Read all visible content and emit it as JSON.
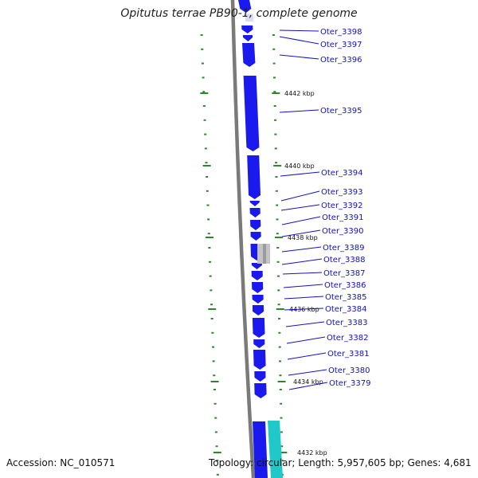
{
  "title": "Opitutus terrae PB90-1, complete genome",
  "accession_label": "Accession:",
  "accession": "NC_010571",
  "topology_text": "Topology: circular; Length: 5,957,605 bp; Genes: 4,681",
  "colors": {
    "gene_forward": "#1a1aee",
    "gene_reverse": "#20c8c8",
    "pseudogene": "#c4c4c4",
    "tick": "#2a8a2a",
    "backbone": "#7a7a7a",
    "label": "#1010c8"
  },
  "kbp_labels": [
    "4442 kbp",
    "4440 kbp",
    "4438 kbp",
    "4436 kbp",
    "4434 kbp",
    "4432 kbp"
  ],
  "gene_labels": [
    "Oter_3398",
    "Oter_3397",
    "Oter_3396",
    "Oter_3395",
    "Oter_3394",
    "Oter_3393",
    "Oter_3392",
    "Oter_3391",
    "Oter_3390",
    "Oter_3389",
    "Oter_3388",
    "Oter_3387",
    "Oter_3386",
    "Oter_3385",
    "Oter_3384",
    "Oter_3383",
    "Oter_3382",
    "Oter_3381",
    "Oter_3380",
    "Oter_3379"
  ]
}
